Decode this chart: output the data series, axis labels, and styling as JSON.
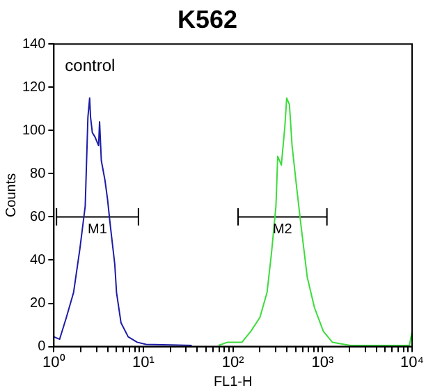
{
  "chart_data": {
    "type": "line",
    "title": "K562",
    "xlabel": "FL1-H",
    "ylabel": "Counts",
    "log": "x",
    "legend": false,
    "grid": false,
    "xlim": [
      1,
      10000
    ],
    "ylim": [
      0,
      140
    ],
    "xticks": [
      {
        "value": 1,
        "label": "10⁰"
      },
      {
        "value": 2,
        "label": null
      },
      {
        "value": 3,
        "label": null
      },
      {
        "value": 4,
        "label": null
      },
      {
        "value": 5,
        "label": null
      },
      {
        "value": 6,
        "label": null
      },
      {
        "value": 7,
        "label": null
      },
      {
        "value": 8,
        "label": null
      },
      {
        "value": 9,
        "label": null
      },
      {
        "value": 10,
        "label": "10¹"
      },
      {
        "value": 20,
        "label": null
      },
      {
        "value": 30,
        "label": null
      },
      {
        "value": 40,
        "label": null
      },
      {
        "value": 50,
        "label": null
      },
      {
        "value": 60,
        "label": null
      },
      {
        "value": 70,
        "label": null
      },
      {
        "value": 80,
        "label": null
      },
      {
        "value": 90,
        "label": null
      },
      {
        "value": 100,
        "label": "10²"
      },
      {
        "value": 200,
        "label": null
      },
      {
        "value": 300,
        "label": null
      },
      {
        "value": 400,
        "label": null
      },
      {
        "value": 500,
        "label": null
      },
      {
        "value": 600,
        "label": null
      },
      {
        "value": 700,
        "label": null
      },
      {
        "value": 800,
        "label": null
      },
      {
        "value": 900,
        "label": null
      },
      {
        "value": 1000,
        "label": "10³"
      },
      {
        "value": 2000,
        "label": null
      },
      {
        "value": 3000,
        "label": null
      },
      {
        "value": 4000,
        "label": null
      },
      {
        "value": 5000,
        "label": null
      },
      {
        "value": 6000,
        "label": null
      },
      {
        "value": 7000,
        "label": null
      },
      {
        "value": 8000,
        "label": null
      },
      {
        "value": 9000,
        "label": null
      },
      {
        "value": 10000,
        "label": "10⁴"
      }
    ],
    "yticks": [
      0,
      20,
      40,
      60,
      80,
      100,
      120,
      140
    ],
    "annotations": [
      "control"
    ],
    "series": [
      {
        "color": "#1c1ca8",
        "x": [
          1,
          1.16,
          1.38,
          1.66,
          1.95,
          2.24,
          2.4,
          2.51,
          2.57,
          2.69,
          2.88,
          3.16,
          3.24,
          3.39,
          3.72,
          3.98,
          4.27,
          4.79,
          5.01,
          5.62,
          6.76,
          8.51,
          10.7,
          34.7
        ],
        "values": [
          4.5,
          3.4,
          13.5,
          25,
          45,
          65,
          106,
          115,
          106,
          99,
          97,
          93,
          104,
          86,
          77,
          68,
          56,
          38,
          25,
          11,
          4.5,
          2,
          1,
          0.5
        ]
      },
      {
        "color": "#3cdc3c",
        "x": [
          69,
          87,
          126,
          158,
          200,
          240,
          269,
          302,
          316,
          347,
          380,
          398,
          427,
          457,
          513,
          575,
          676,
          813,
          1023,
          1288,
          2042,
          9333,
          10000
        ],
        "values": [
          0.5,
          2,
          2,
          7,
          13.5,
          25,
          43,
          65,
          88,
          84,
          102,
          115,
          112,
          93,
          74,
          56,
          32,
          18,
          7,
          2,
          0.5,
          0.5,
          7
        ]
      },
      {
        "type": "line",
        "name": "M1",
        "color": "#000000",
        "x": [
          1.07,
          8.8
        ],
        "values": [
          60,
          60
        ],
        "errors": [
          4,
          4
        ]
      },
      {
        "type": "line",
        "name": "M2",
        "color": "#000000",
        "x": [
          114,
          1120
        ],
        "values": [
          60,
          60
        ],
        "errors": [
          4,
          4
        ]
      }
    ]
  }
}
